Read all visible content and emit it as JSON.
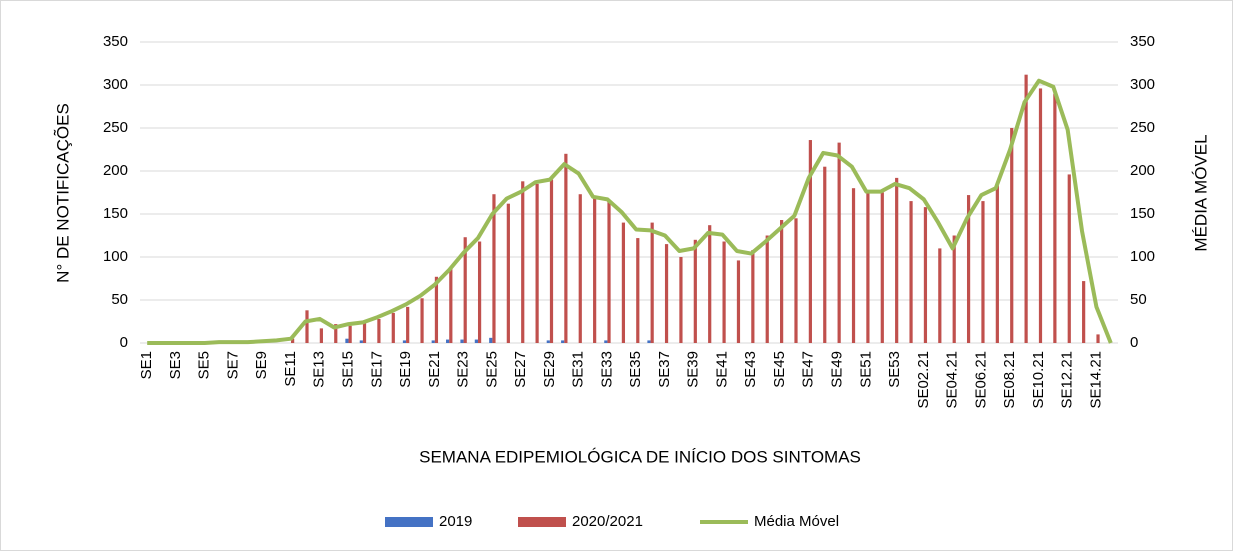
{
  "chart_data": {
    "type": "bar-line",
    "x_label": "SEMANA EDIPEMIOLÓGICA DE INÍCIO DOS SINTOMAS",
    "y_label": "N° DE NOTIFICAÇÕES",
    "y2_label": "MÉDIA MÓVEL",
    "categories": [
      "SE1",
      null,
      "SE3",
      null,
      "SE5",
      null,
      "SE7",
      null,
      "SE9",
      null,
      "SE11",
      null,
      "SE13",
      null,
      "SE15",
      null,
      "SE17",
      null,
      "SE19",
      null,
      "SE21",
      null,
      "SE23",
      null,
      "SE25",
      null,
      "SE27",
      null,
      "SE29",
      null,
      "SE31",
      null,
      "SE33",
      null,
      "SE35",
      null,
      "SE37",
      null,
      "SE39",
      null,
      "SE41",
      null,
      "SE43",
      null,
      "SE45",
      null,
      "SE47",
      null,
      "SE49",
      null,
      "SE51",
      null,
      "SE53",
      null,
      "SE02.21",
      null,
      "SE04.21",
      null,
      "SE06.21",
      null,
      "SE08.21",
      null,
      "SE10.21",
      null,
      "SE12.21",
      null,
      "SE14.21",
      null
    ],
    "series": [
      {
        "name": "2019",
        "color": "#4472c4",
        "kind": "bar",
        "axis": "y",
        "values": [
          0,
          0,
          0,
          0,
          0,
          0,
          0,
          0,
          0,
          0,
          0,
          0,
          0,
          0,
          5,
          3,
          0,
          0,
          3,
          0,
          3,
          4,
          4,
          4,
          6,
          0,
          0,
          0,
          3,
          3,
          0,
          0,
          3,
          0,
          0,
          3,
          0,
          0,
          0,
          0,
          0,
          0,
          0,
          0,
          0,
          0,
          0,
          0,
          0,
          0,
          0,
          0,
          0,
          0,
          0,
          0,
          0,
          0,
          0,
          0,
          0,
          0,
          0,
          0,
          0,
          0,
          0,
          0
        ]
      },
      {
        "name": "2020/2021",
        "color": "#c0504d",
        "kind": "bar",
        "axis": "y",
        "values": [
          0,
          0,
          0,
          0,
          0,
          0,
          0,
          0,
          0,
          0,
          5,
          38,
          17,
          22,
          20,
          25,
          28,
          35,
          42,
          52,
          77,
          88,
          123,
          118,
          173,
          162,
          188,
          185,
          190,
          220,
          173,
          168,
          165,
          140,
          122,
          140,
          115,
          100,
          120,
          137,
          118,
          96,
          108,
          125,
          143,
          145,
          236,
          205,
          233,
          180,
          175,
          175,
          192,
          165,
          158,
          110,
          125,
          172,
          165,
          183,
          250,
          312,
          296,
          290,
          196,
          72,
          10,
          0
        ]
      },
      {
        "name": "Média Móvel",
        "color": "#9bbb59",
        "kind": "line",
        "axis": "y2",
        "values": [
          0,
          0,
          0,
          0,
          0,
          1,
          1,
          1,
          2,
          3,
          5,
          25,
          28,
          18,
          22,
          24,
          30,
          37,
          45,
          55,
          68,
          85,
          105,
          122,
          150,
          168,
          176,
          187,
          190,
          208,
          197,
          170,
          167,
          152,
          132,
          131,
          125,
          107,
          110,
          128,
          126,
          107,
          104,
          118,
          133,
          148,
          192,
          221,
          218,
          205,
          176,
          176,
          185,
          180,
          167,
          140,
          110,
          145,
          172,
          180,
          225,
          280,
          305,
          298,
          248,
          130,
          42,
          0
        ]
      }
    ],
    "ylim": [
      0,
      350
    ],
    "yticks": [
      0,
      50,
      100,
      150,
      200,
      250,
      300,
      350
    ],
    "y2lim": [
      0,
      350
    ],
    "y2ticks": [
      0,
      50,
      100,
      150,
      200,
      250,
      300,
      350
    ],
    "grid": true,
    "legend": "bottom"
  }
}
